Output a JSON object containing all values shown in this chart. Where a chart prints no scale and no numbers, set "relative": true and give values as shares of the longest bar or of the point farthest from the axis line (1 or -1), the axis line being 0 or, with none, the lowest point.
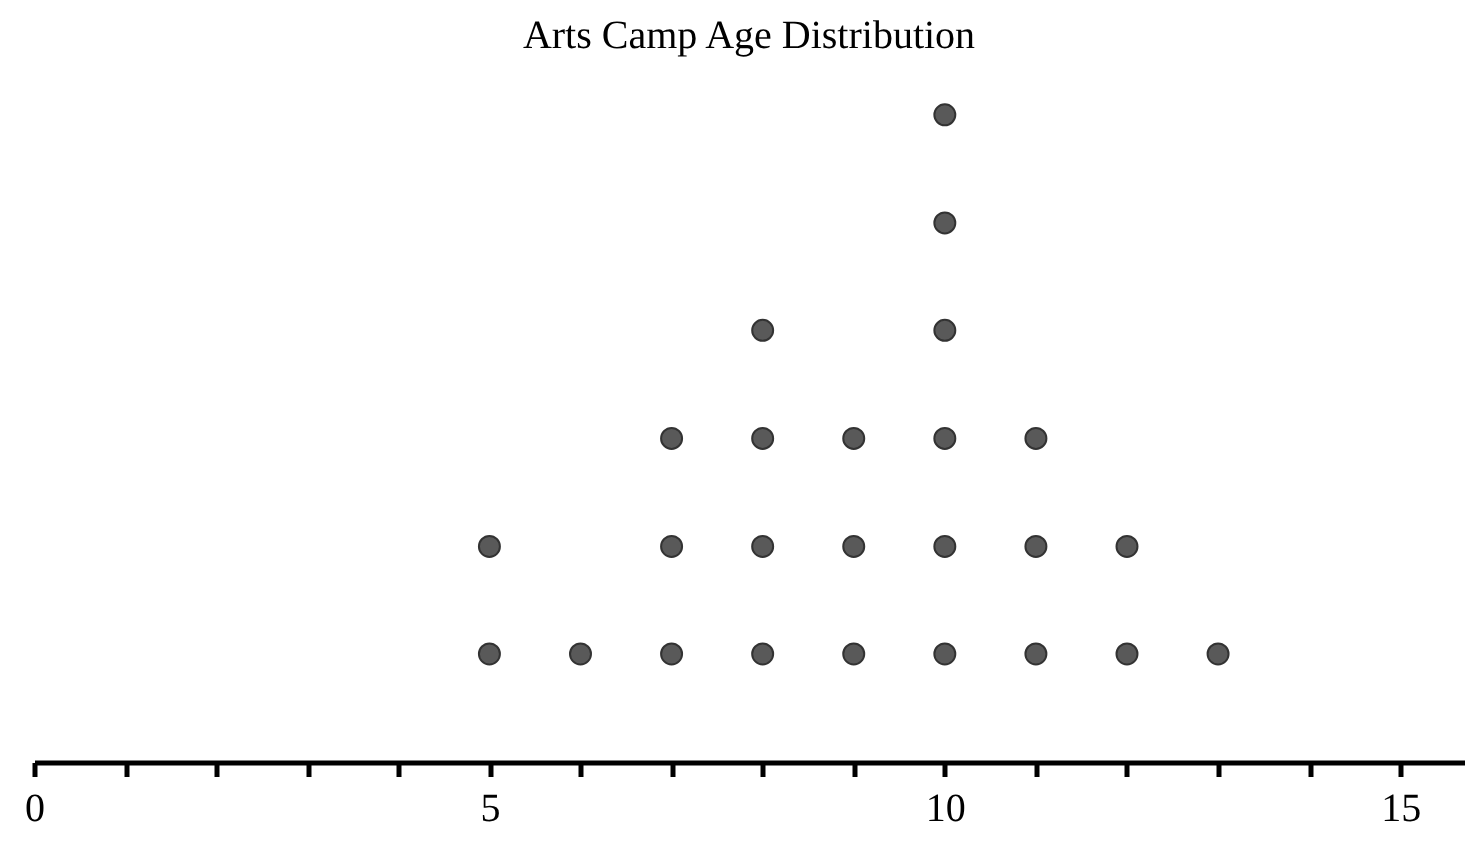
{
  "chart_data": {
    "type": "scatter",
    "title": "Arts Camp Age Distribution",
    "x": [
      5,
      5,
      6,
      7,
      7,
      7,
      8,
      8,
      8,
      8,
      9,
      9,
      9,
      10,
      10,
      10,
      10,
      10,
      10,
      11,
      11,
      11,
      12,
      12,
      13
    ],
    "series": [
      {
        "color": "#595959",
        "values": [
          0.167,
          0.333,
          0.167,
          0.167,
          0.333,
          0.5,
          0.167,
          0.333,
          0.5,
          0.667,
          0.167,
          0.333,
          0.5,
          0.167,
          0.333,
          0.5,
          0.667,
          0.833,
          1,
          0.167,
          0.333,
          0.5,
          0.167,
          0.333,
          0.167
        ]
      }
    ],
    "relative": true,
    "xlim": [
      0,
      15.7
    ],
    "xticks": [
      0,
      {
        "value": 1,
        "label": null
      },
      {
        "value": 2,
        "label": null
      },
      {
        "value": 3,
        "label": null
      },
      {
        "value": 4,
        "label": null
      },
      5,
      {
        "value": 6,
        "label": null
      },
      {
        "value": 7,
        "label": null
      },
      {
        "value": 8,
        "label": null
      },
      {
        "value": 9,
        "label": null
      },
      10,
      {
        "value": 11,
        "label": null
      },
      {
        "value": 12,
        "label": null
      },
      {
        "value": 13,
        "label": null
      },
      {
        "value": 14,
        "label": null
      },
      15
    ],
    "tick_labels": "x",
    "grid": false,
    "marker": "circle"
  }
}
